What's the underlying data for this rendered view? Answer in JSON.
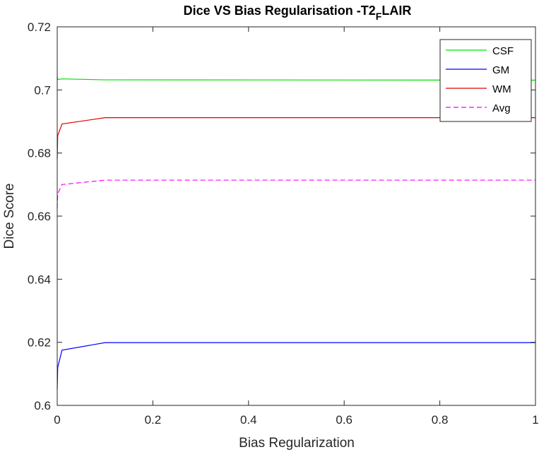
{
  "chart_data": {
    "type": "line",
    "title_main": "Dice VS Bias Regularisation -T2",
    "title_sub": "F",
    "title_tail": "LAIR",
    "xlabel": "Bias Regularization",
    "ylabel": "Dice Score",
    "xlim": [
      0,
      1
    ],
    "ylim": [
      0.6,
      0.72
    ],
    "xticks": [
      "0",
      "0.2",
      "0.4",
      "0.6",
      "0.8",
      "1"
    ],
    "yticks": [
      "0.6",
      "0.62",
      "0.64",
      "0.66",
      "0.68",
      "0.7",
      "0.72"
    ],
    "x": [
      0,
      0.001,
      0.01,
      0.1,
      1
    ],
    "series": [
      {
        "name": "CSF",
        "values": [
          0.7043,
          0.7033,
          0.7035,
          0.7032,
          0.7031
        ],
        "color": "#00dd00",
        "dash": "solid"
      },
      {
        "name": "GM",
        "values": [
          0.605,
          0.612,
          0.6175,
          0.6199,
          0.6199
        ],
        "color": "#0000ff",
        "dash": "solid"
      },
      {
        "name": "WM",
        "values": [
          0.678,
          0.6855,
          0.6892,
          0.6912,
          0.6912
        ],
        "color": "#dd0000",
        "dash": "solid"
      },
      {
        "name": "Avg",
        "values": [
          0.6625,
          0.667,
          0.67,
          0.6714,
          0.6714
        ],
        "color": "#ff00ff",
        "dash": "dashed"
      }
    ],
    "legend_position": "top-right",
    "grid": false
  }
}
